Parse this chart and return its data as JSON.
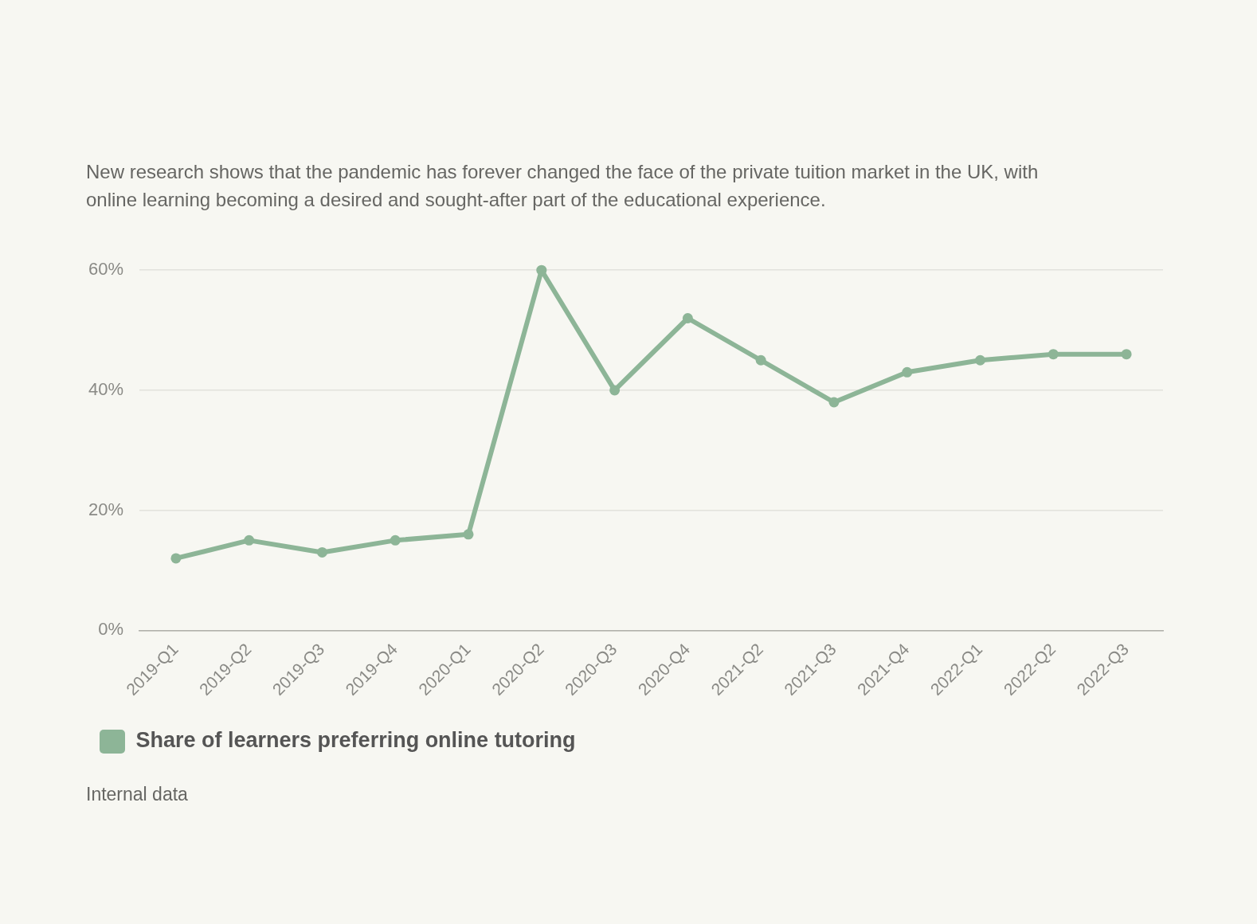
{
  "chart_data": {
    "type": "line",
    "subtitle": "New research shows that the pandemic has forever changed the face of the private tuition market in the UK, with online learning becoming a desired and sought-after part of the educational experience.",
    "categories": [
      "2019-Q1",
      "2019-Q2",
      "2019-Q3",
      "2019-Q4",
      "2020-Q1",
      "2020-Q2",
      "2020-Q3",
      "2020-Q4",
      "2021-Q2",
      "2021-Q3",
      "2021-Q4",
      "2022-Q1",
      "2022-Q2",
      "2022-Q3"
    ],
    "series": [
      {
        "name": "Share of learners preferring online tutoring",
        "color": "#8db597",
        "values": [
          12,
          15,
          13,
          15,
          16,
          60,
          40,
          52,
          45,
          38,
          43,
          45,
          46,
          46
        ]
      }
    ],
    "ylim": [
      0,
      60
    ],
    "yticks": [
      {
        "value": 0,
        "label": "0%"
      },
      {
        "value": 20,
        "label": "20%"
      },
      {
        "value": 40,
        "label": "40%"
      },
      {
        "value": 60,
        "label": "60%"
      }
    ],
    "grid": "y",
    "legend": "bottom left",
    "marker": "circle",
    "line_style": "solid",
    "annotations": [
      "Internal data"
    ]
  }
}
